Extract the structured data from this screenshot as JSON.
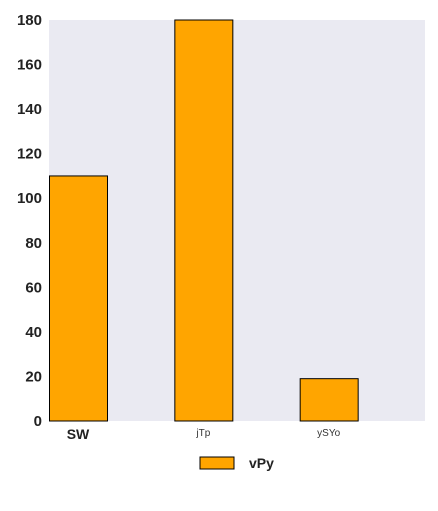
{
  "chart_data": {
    "type": "bar",
    "categories": [
      "SW",
      "jTp",
      "ySYo"
    ],
    "series": [
      {
        "name": "vPy",
        "values": [
          110,
          180,
          19
        ]
      }
    ],
    "ylim": [
      0,
      180
    ],
    "yticks": [
      0,
      20,
      40,
      60,
      80,
      100,
      120,
      140,
      160,
      180
    ],
    "grid": false,
    "legend_position": "bottom-center",
    "colors": {
      "bar_fill": "#FFA500",
      "bar_edge": "#000000",
      "plot_background": "#EAEAF2"
    }
  }
}
